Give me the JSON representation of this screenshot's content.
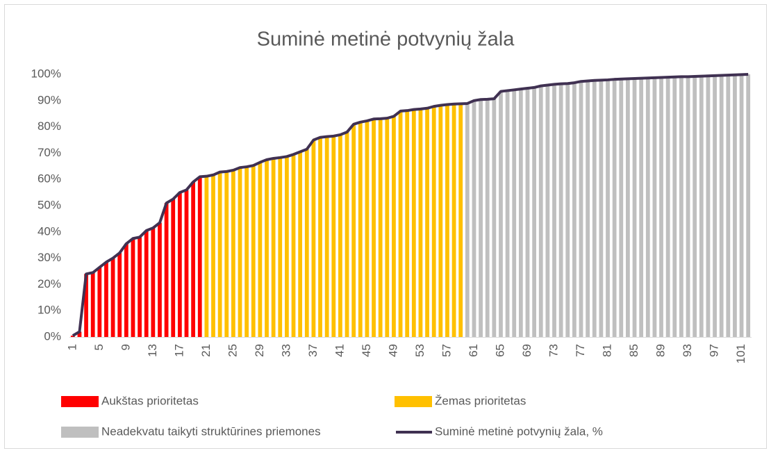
{
  "chart_data": {
    "type": "combo",
    "title": "Suminė metinė potvynių žala",
    "categories": [
      "1",
      null,
      null,
      null,
      "5",
      null,
      null,
      null,
      "9",
      null,
      null,
      null,
      "13",
      null,
      null,
      null,
      "17",
      null,
      null,
      null,
      "21",
      null,
      null,
      null,
      "25",
      null,
      null,
      null,
      "29",
      null,
      null,
      null,
      "33",
      null,
      null,
      null,
      "37",
      null,
      null,
      null,
      "41",
      null,
      null,
      null,
      "45",
      null,
      null,
      null,
      "49",
      null,
      null,
      null,
      "53",
      null,
      null,
      null,
      "57",
      null,
      null,
      null,
      "61",
      null,
      null,
      null,
      "65",
      null,
      null,
      null,
      "69",
      null,
      null,
      null,
      "73",
      null,
      null,
      null,
      "77",
      null,
      null,
      null,
      "81",
      null,
      null,
      null,
      "85",
      null,
      null,
      null,
      "89",
      null,
      null,
      null,
      "93",
      null,
      null,
      null,
      "97",
      null,
      null,
      null,
      "101",
      null
    ],
    "ylim": [
      0,
      100
    ],
    "yticks": [
      {
        "value": 0,
        "label": "0%"
      },
      {
        "value": 10,
        "label": "10%"
      },
      {
        "value": 20,
        "label": "20%"
      },
      {
        "value": 30,
        "label": "30%"
      },
      {
        "value": 40,
        "label": "40%"
      },
      {
        "value": 50,
        "label": "50%"
      },
      {
        "value": 60,
        "label": "60%"
      },
      {
        "value": 70,
        "label": "70%"
      },
      {
        "value": 80,
        "label": "80%"
      },
      {
        "value": 90,
        "label": "90%"
      },
      {
        "value": 100,
        "label": "100%"
      }
    ],
    "grid": false,
    "legend": "bottom",
    "series": [
      {
        "name": "Aukštas prioritetas",
        "type": "bar",
        "color": "#ff0000",
        "values": [
          0.5,
          2,
          24,
          24.5,
          26.5,
          28.5,
          30,
          32,
          35.5,
          37.5,
          38,
          40.5,
          41.5,
          43.5,
          51,
          52.5,
          55,
          56,
          59,
          61,
          null,
          null,
          null,
          null,
          null,
          null,
          null,
          null,
          null,
          null,
          null,
          null,
          null,
          null,
          null,
          null,
          null,
          null,
          null,
          null,
          null,
          null,
          null,
          null,
          null,
          null,
          null,
          null,
          null,
          null,
          null,
          null,
          null,
          null,
          null,
          null,
          null,
          null,
          null,
          null,
          null,
          null,
          null,
          null,
          null,
          null,
          null,
          null,
          null,
          null,
          null,
          null,
          null,
          null,
          null,
          null,
          null,
          null,
          null,
          null,
          null,
          null,
          null,
          null,
          null,
          null,
          null,
          null,
          null,
          null,
          null,
          null,
          null,
          null,
          null,
          null,
          null,
          null,
          null,
          null,
          null,
          null
        ]
      },
      {
        "name": "Žemas prioritetas",
        "type": "bar",
        "color": "#ffc000",
        "values": [
          null,
          null,
          null,
          null,
          null,
          null,
          null,
          null,
          null,
          null,
          null,
          null,
          null,
          null,
          null,
          null,
          null,
          null,
          null,
          null,
          61.2,
          61.7,
          62.8,
          63,
          63.5,
          64.5,
          64.8,
          65.3,
          66.5,
          67.5,
          68,
          68.3,
          68.7,
          69.5,
          70.5,
          71.5,
          75,
          76,
          76.3,
          76.5,
          77,
          78,
          81,
          81.8,
          82.3,
          83,
          83.1,
          83.3,
          84,
          86,
          86.2,
          86.6,
          86.8,
          87.1,
          87.8,
          88.2,
          88.5,
          88.7,
          88.8,
          null,
          null,
          null,
          null,
          null,
          null,
          null,
          null,
          null,
          null,
          null,
          null,
          null,
          null,
          null,
          null,
          null,
          null,
          null,
          null,
          null,
          null,
          null,
          null,
          null,
          null,
          null,
          null,
          null,
          null,
          null,
          null,
          null,
          null,
          null,
          null,
          null,
          null,
          null,
          null,
          null,
          null,
          null
        ]
      },
      {
        "name": "Neadekvatu taikyti struktūrines priemones",
        "type": "bar",
        "color": "#bfbfbf",
        "values": [
          null,
          null,
          null,
          null,
          null,
          null,
          null,
          null,
          null,
          null,
          null,
          null,
          null,
          null,
          null,
          null,
          null,
          null,
          null,
          null,
          null,
          null,
          null,
          null,
          null,
          null,
          null,
          null,
          null,
          null,
          null,
          null,
          null,
          null,
          null,
          null,
          null,
          null,
          null,
          null,
          null,
          null,
          null,
          null,
          null,
          null,
          null,
          null,
          null,
          null,
          null,
          null,
          null,
          null,
          null,
          null,
          null,
          null,
          null,
          88.9,
          90,
          90.4,
          90.5,
          90.7,
          93.5,
          93.8,
          94.1,
          94.4,
          94.7,
          95,
          95.6,
          95.9,
          96.2,
          96.4,
          96.5,
          96.8,
          97.3,
          97.5,
          97.7,
          97.8,
          97.9,
          98.1,
          98.2,
          98.3,
          98.4,
          98.5,
          98.6,
          98.7,
          98.8,
          98.9,
          99,
          99.1,
          99.1,
          99.2,
          99.3,
          99.4,
          99.5,
          99.6,
          99.7,
          99.8,
          99.9,
          100
        ]
      },
      {
        "name": "Suminė metinė potvynių žala, %",
        "type": "line",
        "color": "#403152",
        "values": [
          0.5,
          2,
          24,
          24.5,
          26.5,
          28.5,
          30,
          32,
          35.5,
          37.5,
          38,
          40.5,
          41.5,
          43.5,
          51,
          52.5,
          55,
          56,
          59,
          61,
          61.2,
          61.7,
          62.8,
          63,
          63.5,
          64.5,
          64.8,
          65.3,
          66.5,
          67.5,
          68,
          68.3,
          68.7,
          69.5,
          70.5,
          71.5,
          75,
          76,
          76.3,
          76.5,
          77,
          78,
          81,
          81.8,
          82.3,
          83,
          83.1,
          83.3,
          84,
          86,
          86.2,
          86.6,
          86.8,
          87.1,
          87.8,
          88.2,
          88.5,
          88.7,
          88.8,
          88.9,
          90,
          90.4,
          90.5,
          90.7,
          93.5,
          93.8,
          94.1,
          94.4,
          94.7,
          95,
          95.6,
          95.9,
          96.2,
          96.4,
          96.5,
          96.8,
          97.3,
          97.5,
          97.7,
          97.8,
          97.9,
          98.1,
          98.2,
          98.3,
          98.4,
          98.5,
          98.6,
          98.7,
          98.8,
          98.9,
          99,
          99.1,
          99.1,
          99.2,
          99.3,
          99.4,
          99.5,
          99.6,
          99.7,
          99.8,
          99.9,
          100
        ]
      }
    ]
  }
}
